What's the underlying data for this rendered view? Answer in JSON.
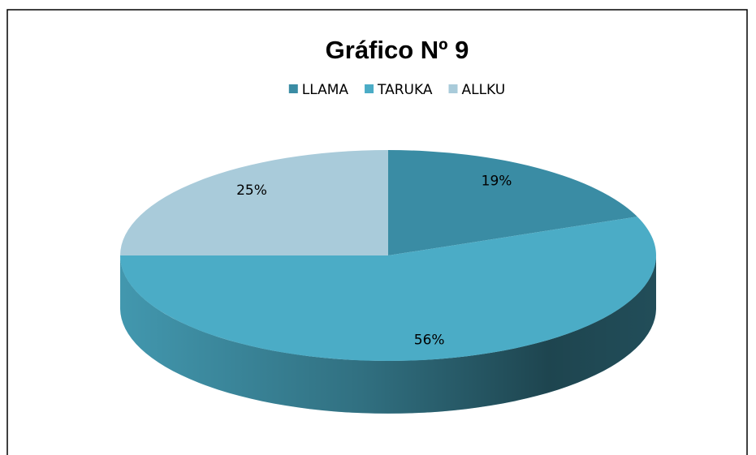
{
  "chart_data": {
    "type": "pie",
    "title": "Gráfico Nº 9",
    "categories": [
      "LLAMA",
      "TARUKA",
      "ALLKU"
    ],
    "values": [
      19,
      56,
      25
    ],
    "value_labels": [
      "19%",
      "56%",
      "25%"
    ],
    "colors": [
      "#3a8ca4",
      "#4bacc6",
      "#a9cbda"
    ],
    "legend": "top"
  }
}
